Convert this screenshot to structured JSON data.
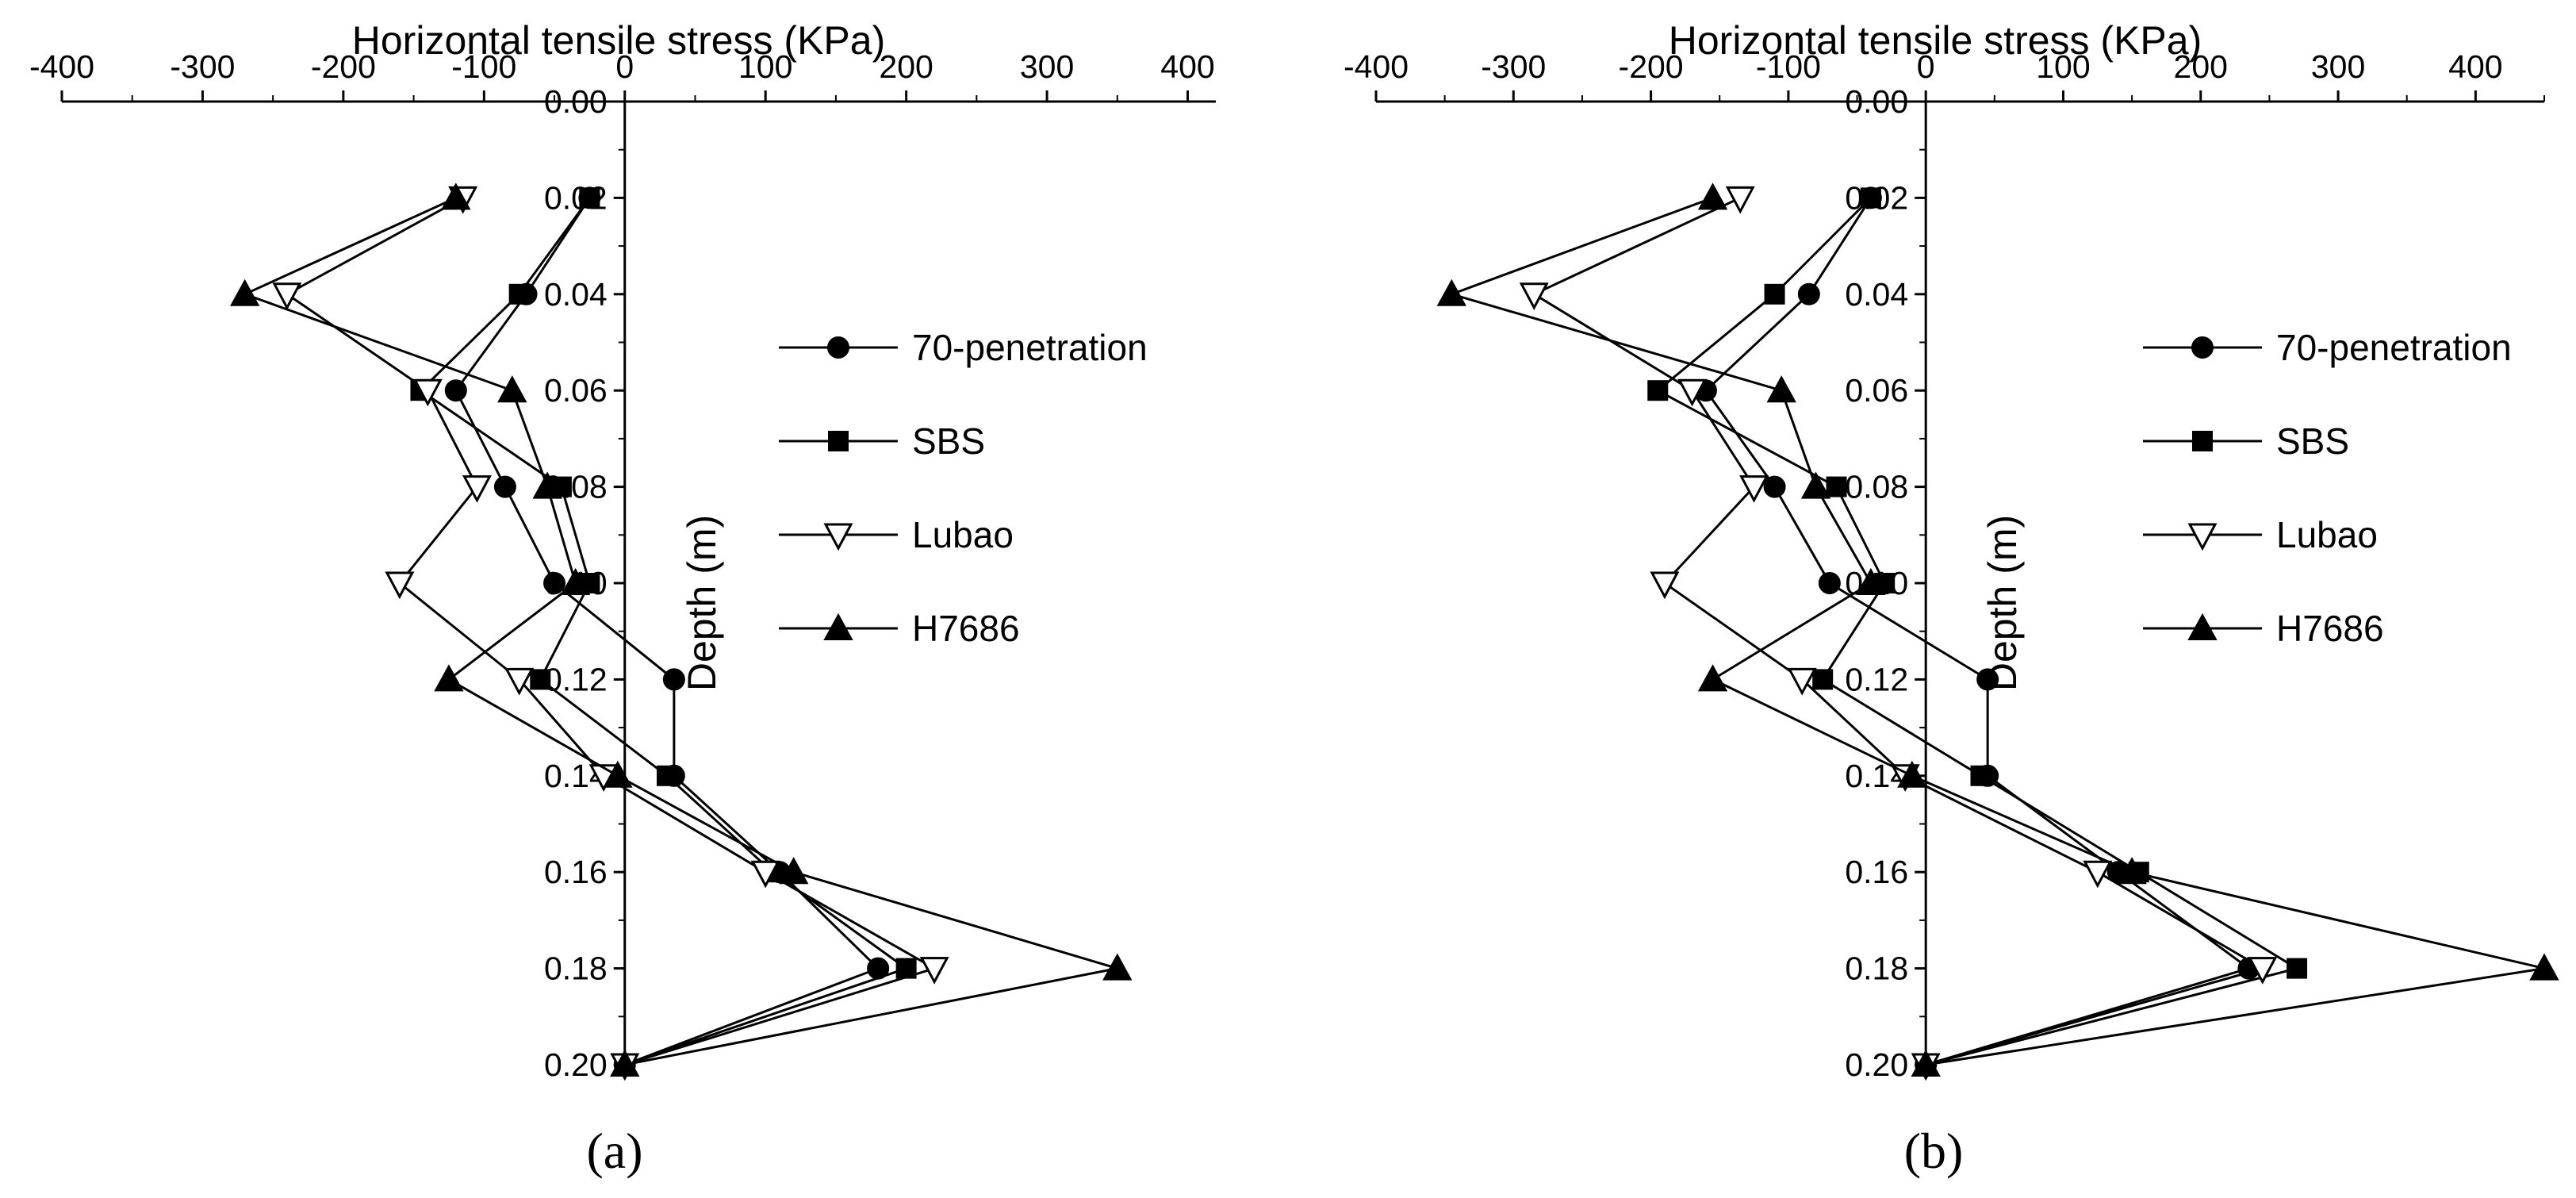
{
  "colors": {
    "background": "#ffffff",
    "ink": "#000000",
    "open_marker": "#ffffff"
  },
  "chart_data": [
    {
      "type": "line",
      "panel_label": "(a)",
      "title": "Horizontal tensile stress (KPa)",
      "xlabel": "Horizontal tensile stress (KPa)",
      "ylabel": "Depth (m)",
      "xlim": [
        -400,
        420
      ],
      "ylim": [
        0.0,
        0.2
      ],
      "y_inverted": true,
      "x_axis_position": "top",
      "x_ticks": [
        -400,
        -300,
        -200,
        -100,
        0,
        100,
        200,
        300,
        400
      ],
      "x_tick_labels": [
        "-400",
        "-300",
        "-200",
        "-100",
        "0",
        "100",
        "200",
        "300",
        "400"
      ],
      "y_ticks": [
        0.0,
        0.02,
        0.04,
        0.06,
        0.08,
        0.1,
        0.12,
        0.14,
        0.16,
        0.18,
        0.2
      ],
      "y_tick_labels": [
        "0.00",
        "0.02",
        "0.04",
        "0.06",
        "0.08",
        "0.10",
        "0.12",
        "0.14",
        "0.16",
        "0.18",
        "0.20"
      ],
      "legend_position": "right",
      "y": [
        0.02,
        0.04,
        0.06,
        0.08,
        0.1,
        0.12,
        0.14,
        0.16,
        0.18,
        0.2
      ],
      "series": [
        {
          "name": "70-penetration",
          "marker": "circle",
          "x": [
            -25,
            -70,
            -120,
            -85,
            -50,
            35,
            35,
            110,
            180,
            0
          ]
        },
        {
          "name": "SBS",
          "marker": "square",
          "x": [
            -25,
            -75,
            -145,
            -45,
            -25,
            -60,
            30,
            105,
            200,
            0
          ]
        },
        {
          "name": "Lubao",
          "marker": "triangle-down-open",
          "x": [
            -115,
            -240,
            -140,
            -105,
            -160,
            -75,
            -15,
            100,
            220,
            0
          ]
        },
        {
          "name": "H7686",
          "marker": "triangle-up",
          "x": [
            -120,
            -270,
            -80,
            -55,
            -35,
            -125,
            -5,
            120,
            350,
            0
          ]
        }
      ]
    },
    {
      "type": "line",
      "panel_label": "(b)",
      "title": "Horizontal tensile stress (KPa)",
      "xlabel": "Horizontal tensile stress (KPa)",
      "ylabel": "Depth (m)",
      "xlim": [
        -400,
        450
      ],
      "ylim": [
        0.0,
        0.2
      ],
      "y_inverted": true,
      "x_axis_position": "top",
      "x_ticks": [
        -400,
        -300,
        -200,
        -100,
        0,
        100,
        200,
        300,
        400
      ],
      "x_tick_labels": [
        "-400",
        "-300",
        "-200",
        "-100",
        "0",
        "100",
        "200",
        "300",
        "400"
      ],
      "y_ticks": [
        0.0,
        0.02,
        0.04,
        0.06,
        0.08,
        0.1,
        0.12,
        0.14,
        0.16,
        0.18,
        0.2
      ],
      "y_tick_labels": [
        "0.00",
        "0.02",
        "0.04",
        "0.06",
        "0.08",
        "0.10",
        "0.12",
        "0.14",
        "0.16",
        "0.18",
        "0.20"
      ],
      "legend_position": "right",
      "y": [
        0.02,
        0.04,
        0.06,
        0.08,
        0.1,
        0.12,
        0.14,
        0.16,
        0.18,
        0.2
      ],
      "series": [
        {
          "name": "70-penetration",
          "marker": "circle",
          "x": [
            -40,
            -85,
            -160,
            -110,
            -70,
            45,
            45,
            140,
            235,
            0
          ]
        },
        {
          "name": "SBS",
          "marker": "square",
          "x": [
            -40,
            -110,
            -195,
            -65,
            -30,
            -75,
            40,
            155,
            270,
            0
          ]
        },
        {
          "name": "Lubao",
          "marker": "triangle-down-open",
          "x": [
            -135,
            -285,
            -170,
            -125,
            -190,
            -90,
            -15,
            125,
            245,
            0
          ]
        },
        {
          "name": "H7686",
          "marker": "triangle-up",
          "x": [
            -155,
            -345,
            -105,
            -80,
            -40,
            -155,
            -10,
            150,
            450,
            0
          ]
        }
      ]
    }
  ]
}
